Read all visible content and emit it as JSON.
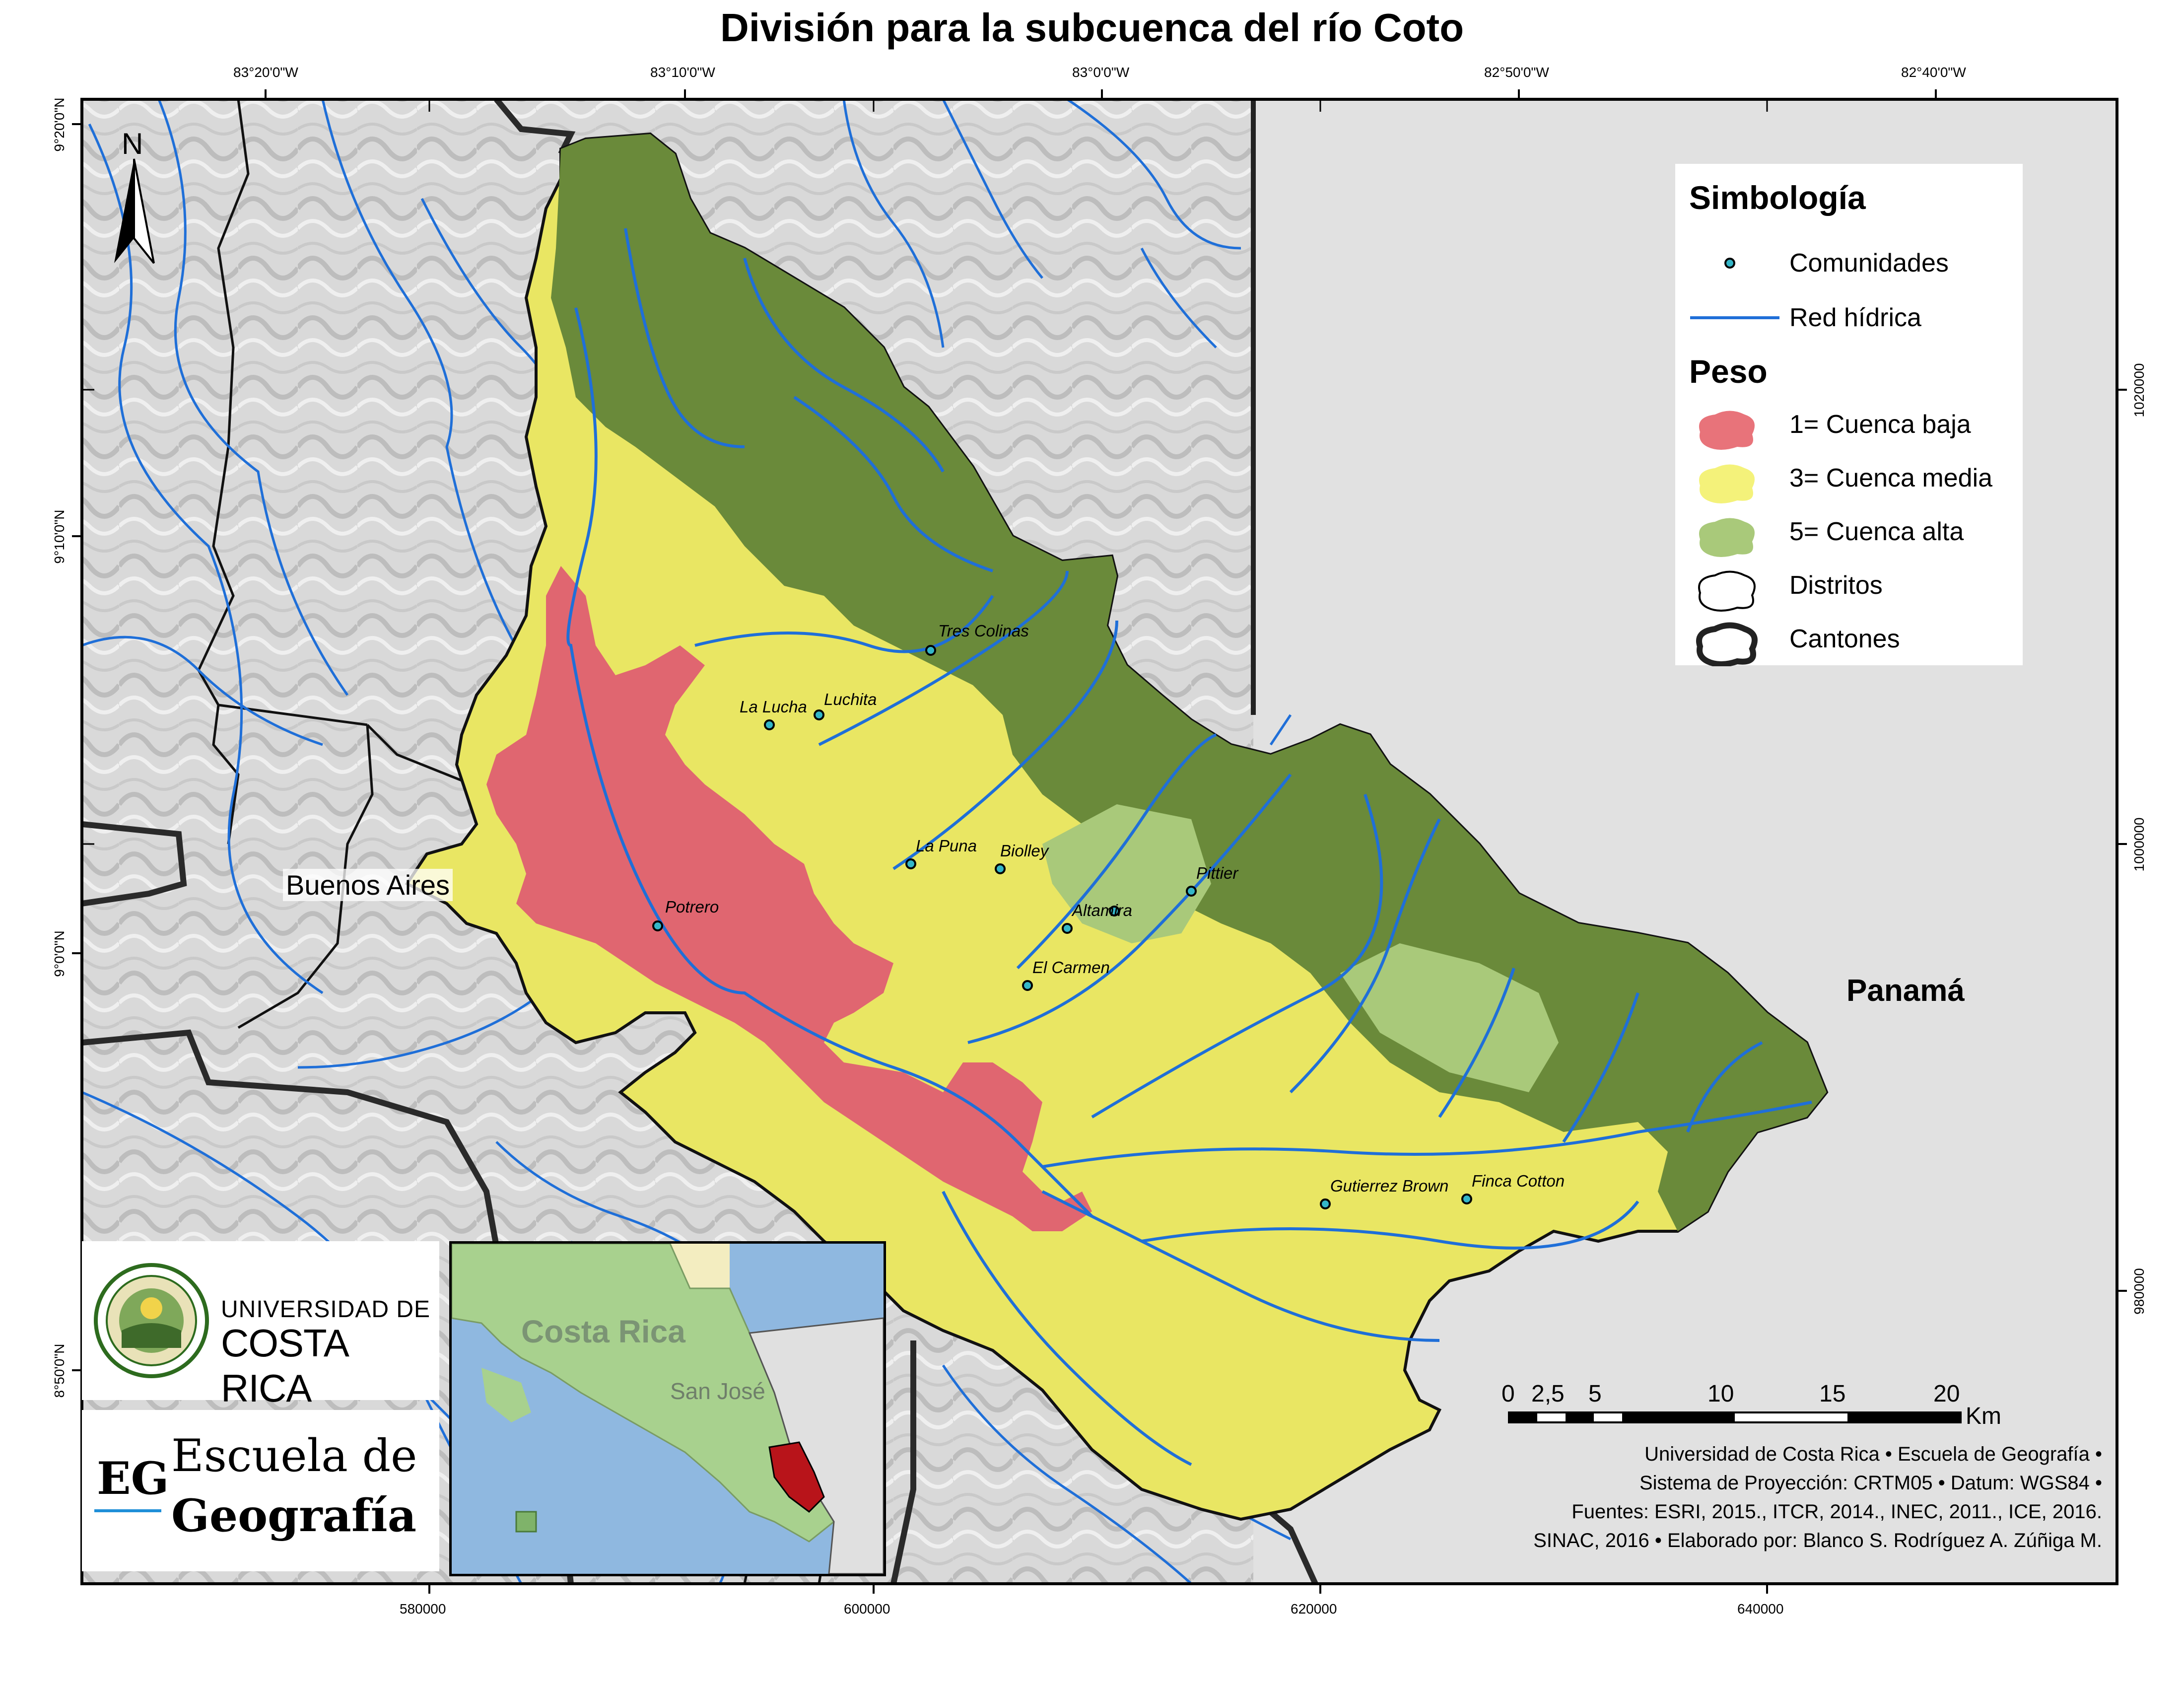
{
  "title": "División para la subcuenca del río Coto",
  "coords": {
    "top": [
      "83°20'0\"W",
      "83°10'0\"W",
      "83°0'0\"W",
      "82°50'0\"W",
      "82°40'0\"W"
    ],
    "bottom": [
      "580000",
      "600000",
      "620000",
      "640000"
    ],
    "left": [
      "9°20'0\"N",
      "9°10'0\"N",
      "9°0'0\"N",
      "8°50'0\"N"
    ],
    "right": [
      "1020000",
      "1000000",
      "980000"
    ]
  },
  "north_arrow": "N",
  "legend": {
    "heading": "Simbología",
    "items": [
      {
        "label": "Comunidades",
        "icon": "community-point-icon"
      },
      {
        "label": "Red hídrica",
        "icon": "river-line-icon"
      }
    ],
    "peso_heading": "Peso",
    "peso_items": [
      {
        "label": "1= Cuenca baja",
        "color": "#e8737a"
      },
      {
        "label": "3= Cuenca media",
        "color": "#f4f27a"
      },
      {
        "label": "5= Cuenca alta",
        "color": "#a9c97a"
      },
      {
        "label": "Distritos",
        "color": "#ffffff"
      },
      {
        "label": "Cantones",
        "color": "#ffffff"
      }
    ]
  },
  "places": [
    "Tres Colinas",
    "La Lucha",
    "Luchita",
    "La Puna",
    "Biolley",
    "Pittier",
    "Altamira",
    "Potrero",
    "El Carmen",
    "Gutierrez Brown",
    "Finca Cotton"
  ],
  "regions": {
    "buenos_aires": "Buenos Aires",
    "panama": "Panamá"
  },
  "scale": {
    "ticks": [
      "0",
      "2,5",
      "5",
      "10",
      "15",
      "20"
    ],
    "unit": "Km"
  },
  "credits": [
    "Universidad de Costa Rica • Escuela de Geografía •",
    "Sistema de Proyección: CRTM05 • Datum: WGS84 •",
    "Fuentes: ESRI, 2015., ITCR, 2014., INEC, 2011., ICE, 2016.",
    "SINAC, 2016 • Elaborado por: Blanco S. Rodríguez A. Zúñiga M."
  ],
  "logos": {
    "ucr_line1": "UNIVERSIDAD DE",
    "ucr_line2": "COSTA RICA",
    "eg_abbr": "EG",
    "eg_line1": "Escuela de",
    "eg_line2": "Geografía"
  },
  "inset": {
    "country": "Costa Rica",
    "capital": "San José"
  }
}
